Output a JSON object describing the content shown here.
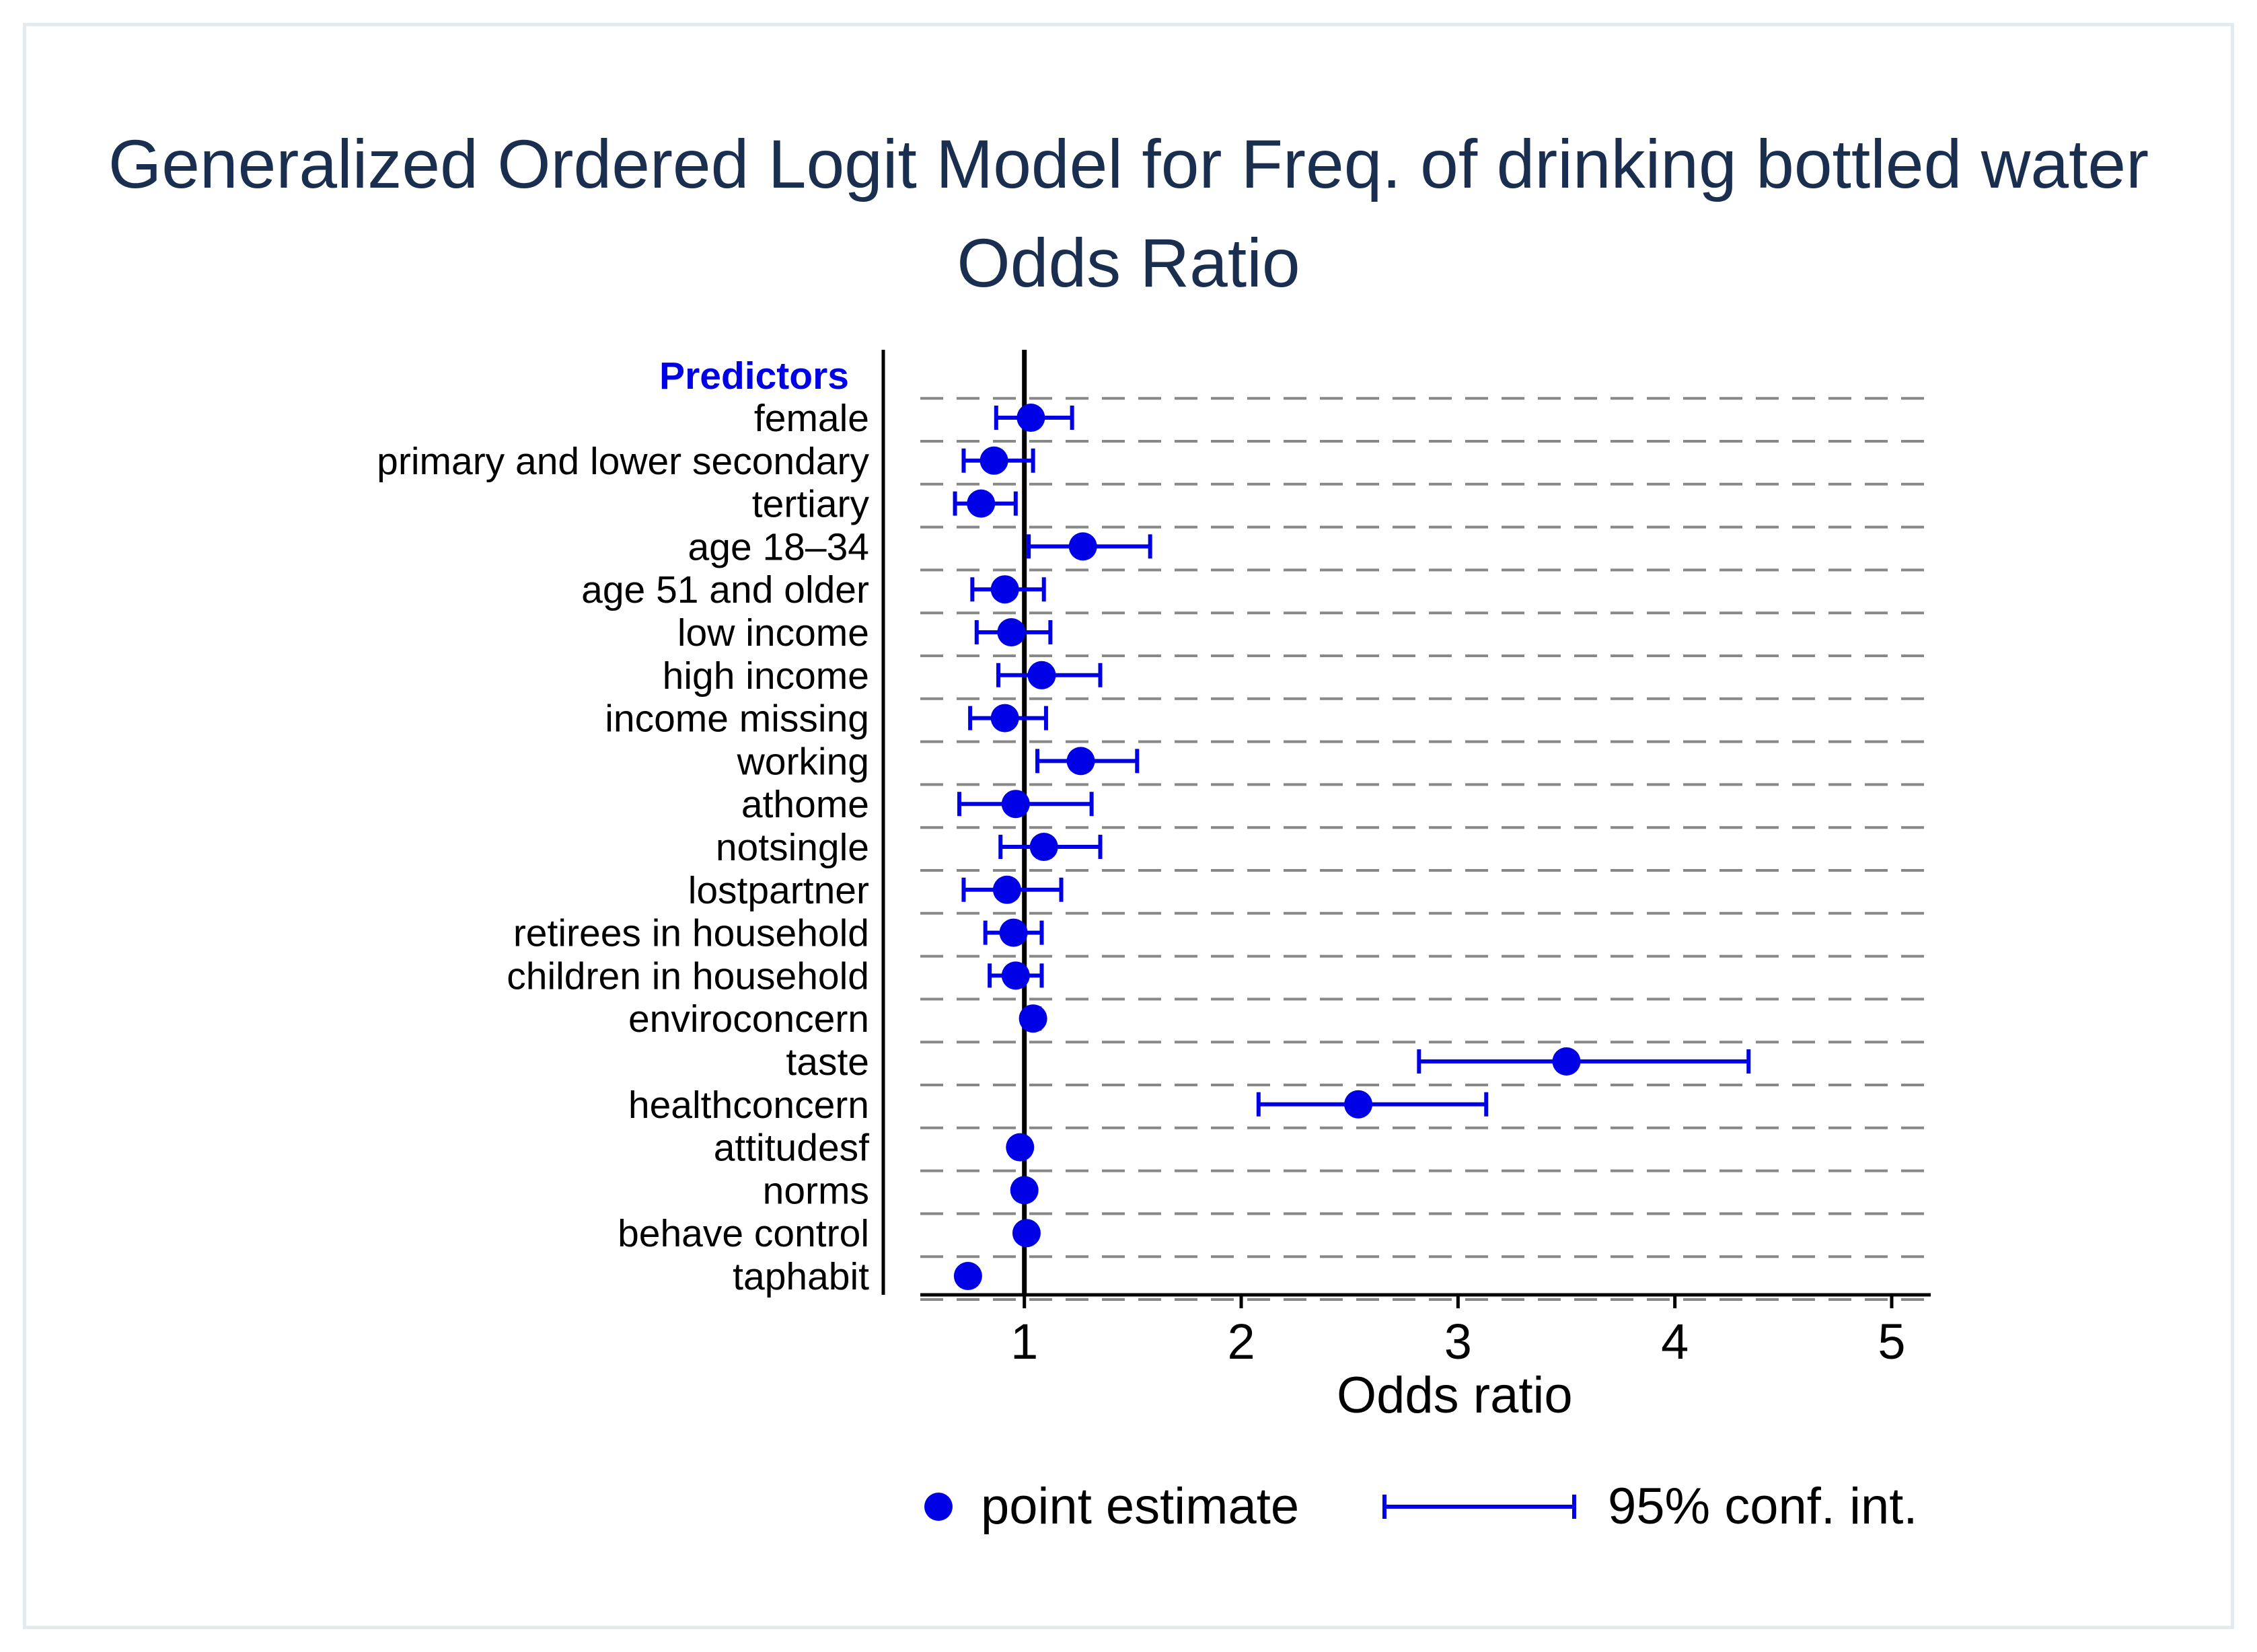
{
  "chart_data": {
    "type": "scatter",
    "title": "Generalized Ordered Logit Model for Freq. of drinking bottled water",
    "subtitle": "Odds Ratio",
    "xlabel": "Odds ratio",
    "group_label": "Predictors",
    "xlim": [
      0.52,
      5.18
    ],
    "x_ticks": [
      1,
      2,
      3,
      4,
      5
    ],
    "reference_line": 1,
    "grid": "dashed horizontal",
    "legend_position": "bottom",
    "colors": {
      "marker": "#0000e6",
      "grid": "#888888",
      "axis": "#000000",
      "title": "#1a2f4f",
      "group_label": "#0000e6"
    },
    "legend": {
      "point": "point estimate",
      "ci": "95% conf. int."
    },
    "categories": [
      "female",
      "primary and lower secondary",
      "tertiary",
      "age 18–34",
      "age 51 and older",
      "low income",
      "high income",
      "income missing",
      "working",
      "athome",
      "notsingle",
      "lostpartner",
      "retirees in household",
      "children in household",
      "enviroconcern",
      "taste",
      "healthconcern",
      "attitudesf",
      "norms",
      "behave control",
      "taphabit"
    ],
    "estimates": [
      1.03,
      0.86,
      0.8,
      1.27,
      0.91,
      0.94,
      1.08,
      0.91,
      1.26,
      0.96,
      1.09,
      0.92,
      0.95,
      0.96,
      1.04,
      3.5,
      2.54,
      0.98,
      1.0,
      1.01,
      0.74
    ],
    "ci_low": [
      0.87,
      0.72,
      0.68,
      1.02,
      0.76,
      0.78,
      0.88,
      0.75,
      1.06,
      0.7,
      0.89,
      0.72,
      0.82,
      0.84,
      1.02,
      2.82,
      2.08,
      null,
      null,
      null,
      0.73
    ],
    "ci_high": [
      1.22,
      1.04,
      0.96,
      1.58,
      1.09,
      1.12,
      1.35,
      1.1,
      1.52,
      1.31,
      1.35,
      1.17,
      1.08,
      1.08,
      1.07,
      4.34,
      3.13,
      null,
      null,
      null,
      0.76
    ]
  }
}
